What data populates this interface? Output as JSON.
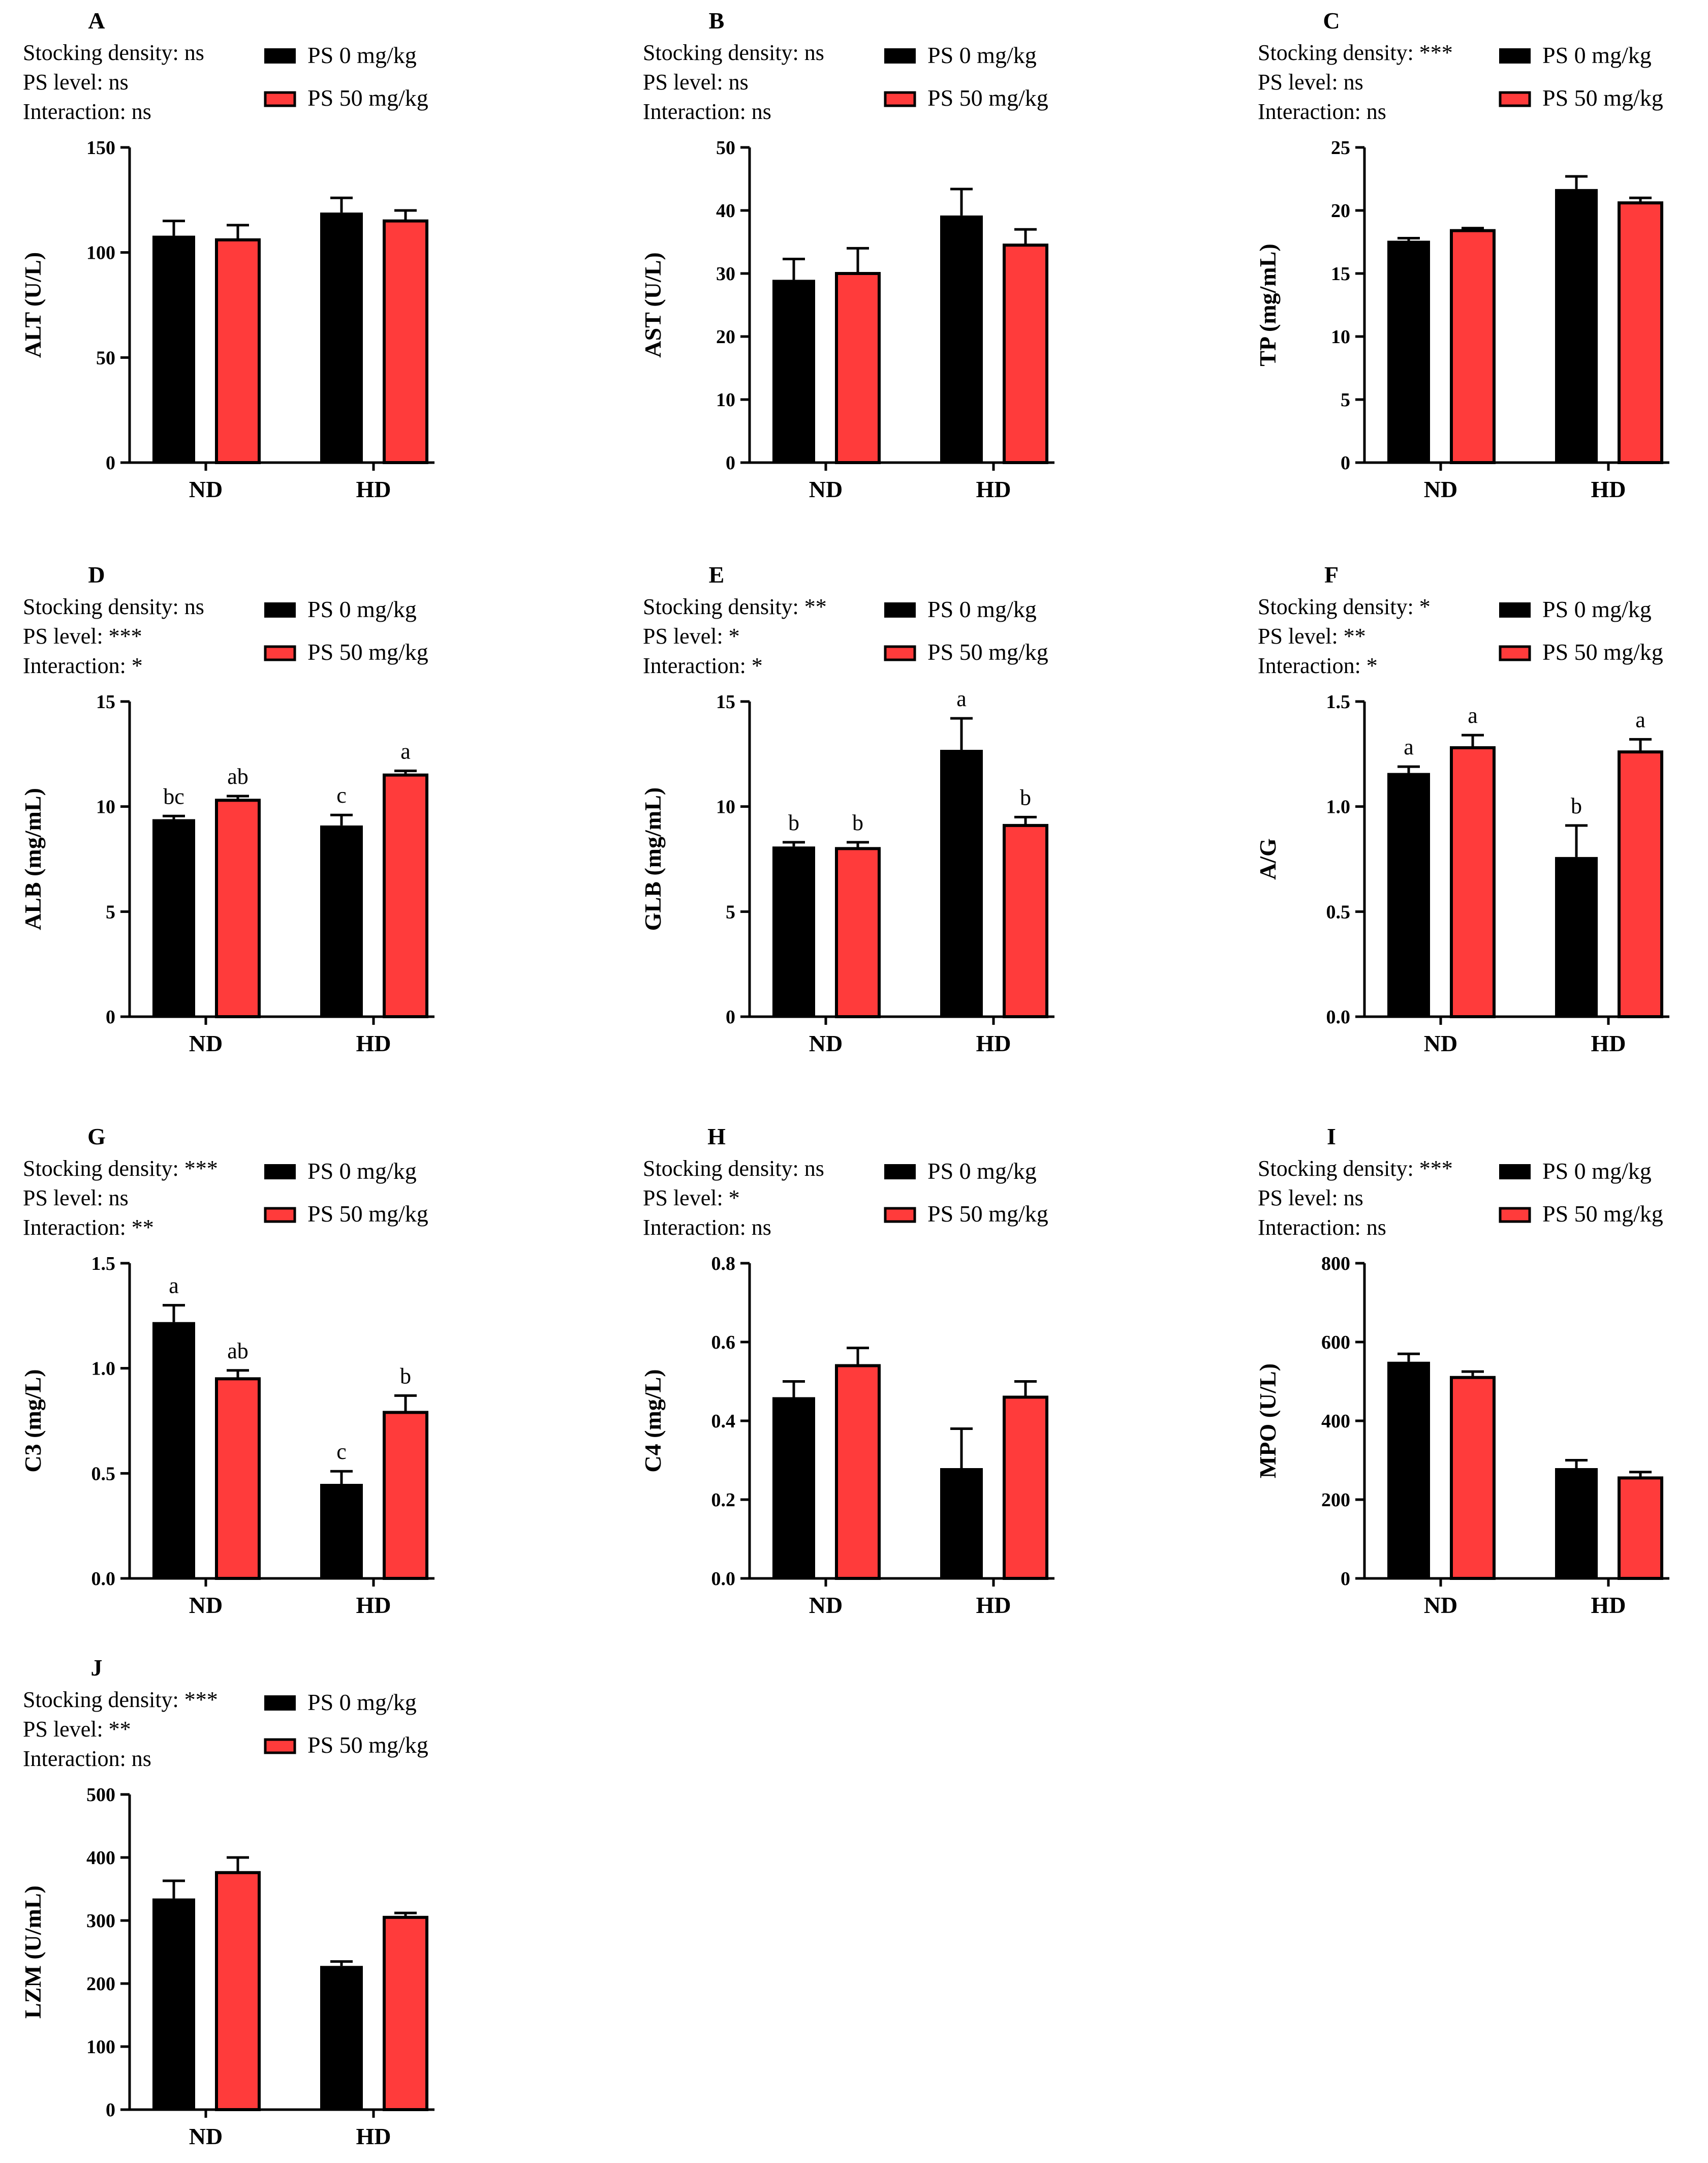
{
  "colors": {
    "ps0": "#000000",
    "ps50": "#ff3b3b",
    "axis": "#000000"
  },
  "legend": {
    "ps0": "PS 0 mg/kg",
    "ps50": "PS 50 mg/kg"
  },
  "categories": [
    "ND",
    "HD"
  ],
  "chart_data": [
    {
      "id": "A",
      "type": "bar",
      "ylabel": "ALT (U/L)",
      "ylim": [
        0,
        150
      ],
      "yticks": [
        "0",
        "50",
        "100",
        "150"
      ],
      "stats": [
        "Stocking density: ns",
        "PS level: ns",
        "Interaction: ns"
      ],
      "series": [
        {
          "name": "PS 0 mg/kg",
          "values": [
            108,
            119
          ],
          "errors": [
            7,
            7
          ],
          "letters": [
            "",
            ""
          ]
        },
        {
          "name": "PS 50 mg/kg",
          "values": [
            106,
            115
          ],
          "errors": [
            7,
            5
          ],
          "letters": [
            "",
            ""
          ]
        }
      ]
    },
    {
      "id": "B",
      "type": "bar",
      "ylabel": "AST (U/L)",
      "ylim": [
        0,
        50
      ],
      "yticks": [
        "0",
        "10",
        "20",
        "30",
        "40",
        "50"
      ],
      "stats": [
        "Stocking density: ns",
        "PS level: ns",
        "Interaction: ns"
      ],
      "series": [
        {
          "name": "PS 0 mg/kg",
          "values": [
            29,
            39.2
          ],
          "errors": [
            3.3,
            4.2
          ],
          "letters": [
            "",
            ""
          ]
        },
        {
          "name": "PS 50 mg/kg",
          "values": [
            30,
            34.5
          ],
          "errors": [
            4,
            2.5
          ],
          "letters": [
            "",
            ""
          ]
        }
      ]
    },
    {
      "id": "C",
      "type": "bar",
      "ylabel": "TP (mg/mL)",
      "ylim": [
        0,
        25
      ],
      "yticks": [
        "0",
        "5",
        "10",
        "15",
        "20",
        "25"
      ],
      "stats": [
        "Stocking density: ***",
        "PS level: ns",
        "Interaction: ns"
      ],
      "series": [
        {
          "name": "PS 0 mg/kg",
          "values": [
            17.6,
            21.7
          ],
          "errors": [
            0.2,
            1
          ],
          "letters": [
            "",
            ""
          ]
        },
        {
          "name": "PS 50 mg/kg",
          "values": [
            18.4,
            20.6
          ],
          "errors": [
            0.2,
            0.4
          ],
          "letters": [
            "",
            ""
          ]
        }
      ]
    },
    {
      "id": "D",
      "type": "bar",
      "ylabel": "ALB (mg/mL)",
      "ylim": [
        0,
        15
      ],
      "yticks": [
        "0",
        "5",
        "10",
        "15"
      ],
      "stats": [
        "Stocking density: ns",
        "PS level: ***",
        "Interaction: *"
      ],
      "series": [
        {
          "name": "PS 0 mg/kg",
          "values": [
            9.4,
            9.1
          ],
          "errors": [
            0.15,
            0.5
          ],
          "letters": [
            "bc",
            "c"
          ]
        },
        {
          "name": "PS 50 mg/kg",
          "values": [
            10.3,
            11.5
          ],
          "errors": [
            0.2,
            0.2
          ],
          "letters": [
            "ab",
            "a"
          ]
        }
      ]
    },
    {
      "id": "E",
      "type": "bar",
      "ylabel": "GLB (mg/mL)",
      "ylim": [
        0,
        15
      ],
      "yticks": [
        "0",
        "5",
        "10",
        "15"
      ],
      "stats": [
        "Stocking density: **",
        "PS level: *",
        "Interaction: *"
      ],
      "series": [
        {
          "name": "PS 0 mg/kg",
          "values": [
            8.1,
            12.7
          ],
          "errors": [
            0.2,
            1.5
          ],
          "letters": [
            "b",
            "a"
          ]
        },
        {
          "name": "PS 50 mg/kg",
          "values": [
            8.0,
            9.1
          ],
          "errors": [
            0.3,
            0.4
          ],
          "letters": [
            "b",
            "b"
          ]
        }
      ]
    },
    {
      "id": "F",
      "type": "bar",
      "ylabel": "A/G",
      "ylim": [
        0,
        1.5
      ],
      "yticks": [
        "0.0",
        "0.5",
        "1.0",
        "1.5"
      ],
      "stats": [
        "Stocking density: *",
        "PS level: **",
        "Interaction: *"
      ],
      "series": [
        {
          "name": "PS 0 mg/kg",
          "values": [
            1.16,
            0.76
          ],
          "errors": [
            0.03,
            0.15
          ],
          "letters": [
            "a",
            "b"
          ]
        },
        {
          "name": "PS 50 mg/kg",
          "values": [
            1.28,
            1.26
          ],
          "errors": [
            0.06,
            0.06
          ],
          "letters": [
            "a",
            "a"
          ]
        }
      ]
    },
    {
      "id": "G",
      "type": "bar",
      "ylabel": "C3 (mg/L)",
      "ylim": [
        0,
        1.5
      ],
      "yticks": [
        "0.0",
        "0.5",
        "1.0",
        "1.5"
      ],
      "stats": [
        "Stocking density: ***",
        "PS level: ns",
        "Interaction: **"
      ],
      "series": [
        {
          "name": "PS 0 mg/kg",
          "values": [
            1.22,
            0.45
          ],
          "errors": [
            0.08,
            0.06
          ],
          "letters": [
            "a",
            "c"
          ]
        },
        {
          "name": "PS 50 mg/kg",
          "values": [
            0.95,
            0.79
          ],
          "errors": [
            0.04,
            0.08
          ],
          "letters": [
            "ab",
            "b"
          ]
        }
      ]
    },
    {
      "id": "H",
      "type": "bar",
      "ylabel": "C4 (mg/L)",
      "ylim": [
        0,
        0.8
      ],
      "yticks": [
        "0.0",
        "0.2",
        "0.4",
        "0.6",
        "0.8"
      ],
      "stats": [
        "Stocking density: ns",
        "PS level: *",
        "Interaction: ns"
      ],
      "series": [
        {
          "name": "PS 0 mg/kg",
          "values": [
            0.46,
            0.28
          ],
          "errors": [
            0.04,
            0.1
          ],
          "letters": [
            "",
            ""
          ]
        },
        {
          "name": "PS 50 mg/kg",
          "values": [
            0.54,
            0.46
          ],
          "errors": [
            0.045,
            0.04
          ],
          "letters": [
            "",
            ""
          ]
        }
      ]
    },
    {
      "id": "I",
      "type": "bar",
      "ylabel": "MPO (U/L)",
      "ylim": [
        0,
        800
      ],
      "yticks": [
        "0",
        "200",
        "400",
        "600",
        "800"
      ],
      "stats": [
        "Stocking density: ***",
        "PS level: ns",
        "Interaction: ns"
      ],
      "series": [
        {
          "name": "PS 0 mg/kg",
          "values": [
            550,
            280
          ],
          "errors": [
            20,
            20
          ],
          "letters": [
            "",
            ""
          ]
        },
        {
          "name": "PS 50 mg/kg",
          "values": [
            510,
            255
          ],
          "errors": [
            15,
            15
          ],
          "letters": [
            "",
            ""
          ]
        }
      ]
    },
    {
      "id": "J",
      "type": "bar",
      "ylabel": "LZM (U/mL)",
      "ylim": [
        0,
        500
      ],
      "yticks": [
        "0",
        "100",
        "200",
        "300",
        "400",
        "500"
      ],
      "stats": [
        "Stocking density: ***",
        "PS level: **",
        "Interaction: ns"
      ],
      "series": [
        {
          "name": "PS 0 mg/kg",
          "values": [
            335,
            228
          ],
          "errors": [
            28,
            7
          ],
          "letters": [
            "",
            ""
          ]
        },
        {
          "name": "PS 50 mg/kg",
          "values": [
            376,
            305
          ],
          "errors": [
            24,
            7
          ],
          "letters": [
            "",
            ""
          ]
        }
      ]
    }
  ]
}
